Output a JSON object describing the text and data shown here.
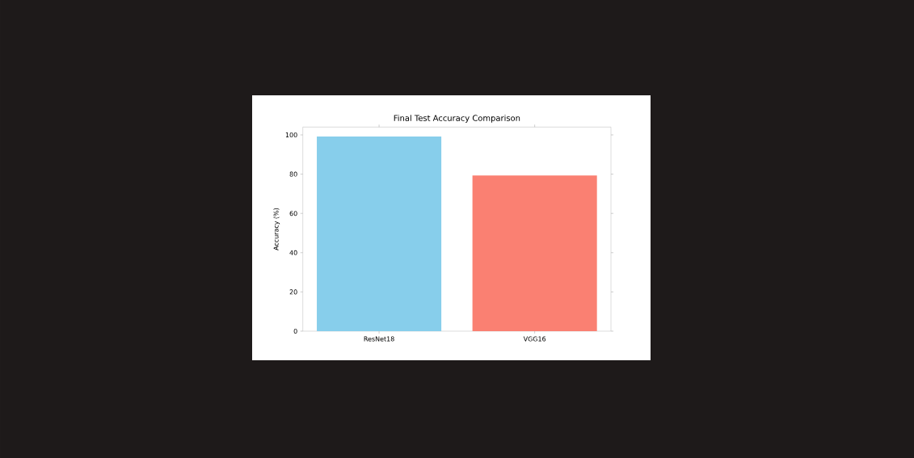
{
  "chart_data": {
    "type": "bar",
    "title": "Final Test Accuracy Comparison",
    "ylabel": "Accuracy (%)",
    "categories": [
      "ResNet18",
      "VGG16"
    ],
    "values": [
      99.2,
      79.3
    ],
    "colors": [
      "#87ceeb",
      "#fa8072"
    ],
    "ylim": [
      0,
      104
    ],
    "yticks": [
      0,
      20,
      40,
      60,
      80,
      100
    ]
  }
}
